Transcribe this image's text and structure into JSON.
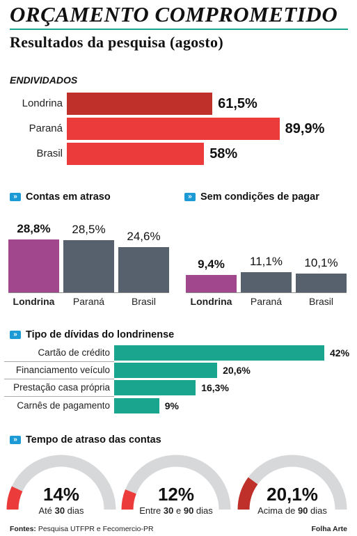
{
  "header": {
    "title": "ORÇAMENTO COMPROMETIDO",
    "subtitle": "Resultados da pesquisa (agosto)"
  },
  "colors": {
    "accent": "#1aa58f",
    "londrina_red": "#c0302b",
    "red": "#ec3b3b",
    "purple": "#a0478d",
    "slate": "#57606d",
    "teal": "#1aa58f",
    "gauge_track": "#d7d8da",
    "icon_blue": "#1c9ad6"
  },
  "chart_data": [
    {
      "type": "bar",
      "orientation": "horizontal",
      "title": "ENDIVIDADOS",
      "categories": [
        "Londrina",
        "Paraná",
        "Brasil"
      ],
      "values": [
        61.5,
        89.9,
        58
      ],
      "labels": [
        "61,5%",
        "89,9%",
        "58%"
      ],
      "colors": [
        "#c0302b",
        "#ec3b3b",
        "#ec3b3b"
      ],
      "xlim": [
        0,
        100
      ]
    },
    {
      "type": "bar",
      "title": "Contas em atraso",
      "categories": [
        "Londrina",
        "Paraná",
        "Brasil"
      ],
      "values": [
        28.8,
        28.5,
        24.6
      ],
      "labels": [
        "28,8%",
        "28,5%",
        "24,6%"
      ],
      "colors": [
        "#a0478d",
        "#57606d",
        "#57606d"
      ],
      "ylim": [
        0,
        30
      ]
    },
    {
      "type": "bar",
      "title": "Sem condições de pagar",
      "categories": [
        "Londrina",
        "Paraná",
        "Brasil"
      ],
      "values": [
        9.4,
        11.1,
        10.1
      ],
      "labels": [
        "9,4%",
        "11,1%",
        "10,1%"
      ],
      "colors": [
        "#a0478d",
        "#57606d",
        "#57606d"
      ],
      "ylim": [
        0,
        30
      ]
    },
    {
      "type": "bar",
      "orientation": "horizontal",
      "title": "Tipo de dívidas do londrinense",
      "categories": [
        "Cartão de crédito",
        "Financiamento veículo",
        "Prestação casa própria",
        "Carnês de pagamento"
      ],
      "values": [
        42,
        20.6,
        16.3,
        9
      ],
      "labels": [
        "42%",
        "20,6%",
        "16,3%",
        "9%"
      ],
      "xlim": [
        0,
        42
      ]
    },
    {
      "type": "gauge",
      "title": "Tempo de atraso das contas",
      "categories": [
        "Até 30 dias",
        "Entre 30 e 90 dias",
        "Acima de 90 dias"
      ],
      "values": [
        14,
        12,
        20.1
      ],
      "labels": [
        "14%",
        "12%",
        "20,1%"
      ],
      "colors": [
        "#ec3b3b",
        "#ec3b3b",
        "#c0302b"
      ],
      "range": [
        0,
        100
      ]
    }
  ],
  "gauge_labels": [
    {
      "pre": "Até ",
      "b1": "30",
      "mid": " dias",
      "b2": "",
      "post": ""
    },
    {
      "pre": "Entre ",
      "b1": "30",
      "mid": " e ",
      "b2": "90",
      "post": " dias"
    },
    {
      "pre": "Acima de ",
      "b1": "90",
      "mid": " dias",
      "b2": "",
      "post": ""
    }
  ],
  "footer": {
    "source_prefix": "Fontes:",
    "source_text": "Pesquisa UTFPR e Fecomercio-PR",
    "credit": "Folha Arte"
  }
}
